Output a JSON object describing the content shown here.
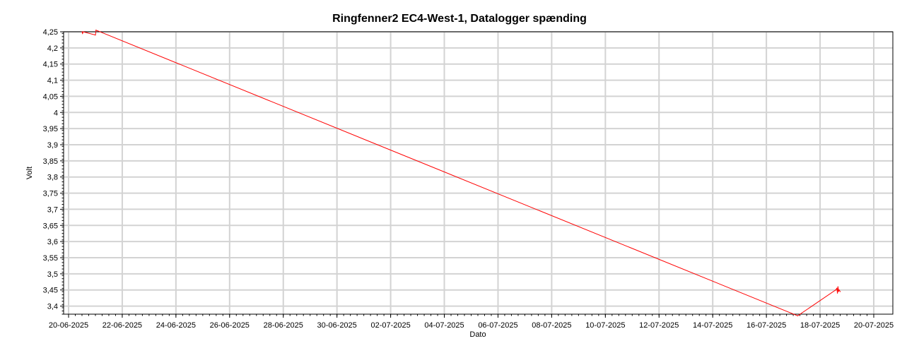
{
  "chart_data": {
    "type": "line",
    "title": "Ringfenner2 EC4-West-1, Datalogger spænding",
    "xlabel": "Dato",
    "ylabel": "Volt",
    "x_tick_labels": [
      "20-06-2025",
      "22-06-2025",
      "24-06-2025",
      "26-06-2025",
      "28-06-2025",
      "30-06-2025",
      "02-07-2025",
      "04-07-2025",
      "06-07-2025",
      "08-07-2025",
      "10-07-2025",
      "12-07-2025",
      "14-07-2025",
      "16-07-2025",
      "18-07-2025",
      "20-07-2025"
    ],
    "y_tick_labels": [
      "4,25",
      "4,2",
      "4,15",
      "4,1",
      "4,05",
      "4",
      "3,95",
      "3,9",
      "3,85",
      "3,8",
      "3,75",
      "3,7",
      "3,65",
      "3,6",
      "3,55",
      "3,5",
      "3,45",
      "3,4"
    ],
    "xlim": [
      "2025-06-20",
      "2025-07-20"
    ],
    "ylim": [
      3.375,
      4.25
    ],
    "grid": true,
    "series": [
      {
        "color": "#ff0000",
        "x": [
          "2025-06-20 12:00",
          "2025-06-20 12:30",
          "2025-06-20 13:00",
          "2025-06-21 00:00",
          "2025-06-21 00:30",
          "2025-07-17 04:00",
          "2025-07-18 14:00",
          "2025-07-18 15:00",
          "2025-07-18 15:30",
          "2025-07-18 16:00",
          "2025-07-18 16:30",
          "2025-07-18 17:00",
          "2025-07-18 18:00"
        ],
        "y": [
          4.25,
          4.245,
          4.25,
          4.24,
          4.255,
          3.37,
          3.45,
          3.455,
          3.44,
          3.46,
          3.445,
          3.45,
          3.445
        ]
      }
    ]
  }
}
